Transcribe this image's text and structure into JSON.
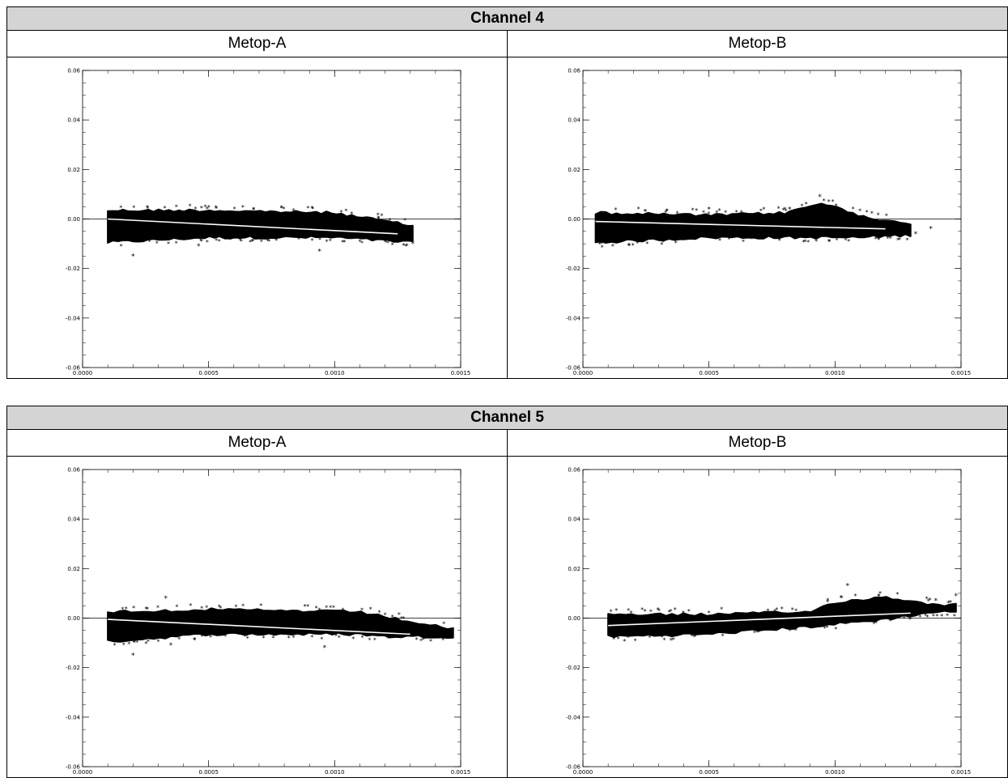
{
  "tables": [
    {
      "title": "Channel 4",
      "columns": [
        "Metop-A",
        "Metop-B"
      ]
    },
    {
      "title": "Channel 5",
      "columns": [
        "Metop-A",
        "Metop-B"
      ]
    }
  ],
  "axis": {
    "x_ticks": [
      "0.0000",
      "0.0005",
      "0.0010",
      "0.0015"
    ],
    "y_ticks": [
      "0.06",
      "0.04",
      "0.02",
      "0.00",
      "-0.02",
      "-0.04",
      "-0.06"
    ]
  },
  "chart_data": [
    {
      "type": "scatter",
      "panel": "Channel 4 / Metop-A",
      "xlim": [
        0,
        0.0015
      ],
      "ylim": [
        -0.06,
        0.06
      ],
      "grid": false,
      "zero_line": true,
      "x_range": [
        0.0001,
        0.00131
      ],
      "band": {
        "x": [
          0.0001,
          0.0005,
          0.001,
          0.0013
        ],
        "upper": [
          0.004,
          0.004,
          0.003,
          -0.002
        ],
        "lower": [
          -0.01,
          -0.008,
          -0.008,
          -0.01
        ]
      },
      "fit_line": {
        "x": [
          0.0001,
          0.00125
        ],
        "y": [
          0.0,
          -0.006
        ]
      },
      "outliers": [
        [
          0.0002,
          -0.015
        ],
        [
          0.00046,
          -0.011
        ],
        [
          0.00094,
          -0.013
        ],
        [
          0.0012,
          -0.009
        ],
        [
          0.00131,
          -0.01
        ]
      ]
    },
    {
      "type": "scatter",
      "panel": "Channel 4 / Metop-B",
      "xlim": [
        0,
        0.0015
      ],
      "ylim": [
        -0.06,
        0.06
      ],
      "grid": false,
      "zero_line": true,
      "x_range": [
        5e-05,
        0.0013
      ],
      "band": {
        "x": [
          5e-05,
          0.0005,
          0.0008,
          0.00095,
          0.0011,
          0.0013
        ],
        "upper": [
          0.003,
          0.002,
          0.003,
          0.007,
          0.002,
          -0.002
        ],
        "lower": [
          -0.01,
          -0.008,
          -0.008,
          -0.008,
          -0.008,
          -0.007
        ]
      },
      "fit_line": {
        "x": [
          5e-05,
          0.0012
        ],
        "y": [
          -0.001,
          -0.004
        ]
      },
      "outliers": [
        [
          0.00094,
          0.009
        ],
        [
          0.00082,
          0.004
        ],
        [
          0.0005,
          0.004
        ],
        [
          0.00132,
          -0.006
        ],
        [
          0.00138,
          -0.004
        ]
      ]
    },
    {
      "type": "scatter",
      "panel": "Channel 5 / Metop-A",
      "xlim": [
        0,
        0.0015
      ],
      "ylim": [
        -0.06,
        0.06
      ],
      "grid": false,
      "zero_line": true,
      "x_range": [
        0.0001,
        0.00147
      ],
      "band": {
        "x": [
          0.0001,
          0.0005,
          0.0011,
          0.0012,
          0.00147
        ],
        "upper": [
          0.003,
          0.004,
          0.003,
          0.001,
          -0.004
        ],
        "lower": [
          -0.01,
          -0.007,
          -0.007,
          -0.008,
          -0.008
        ]
      },
      "fit_line": {
        "x": [
          0.0001,
          0.0013
        ],
        "y": [
          -0.0005,
          -0.0065
        ]
      },
      "outliers": [
        [
          0.0002,
          -0.015
        ],
        [
          0.00033,
          0.008
        ],
        [
          0.00096,
          -0.012
        ],
        [
          0.00035,
          -0.011
        ]
      ]
    },
    {
      "type": "scatter",
      "panel": "Channel 5 / Metop-B",
      "xlim": [
        0,
        0.0015
      ],
      "ylim": [
        -0.06,
        0.06
      ],
      "grid": false,
      "zero_line": true,
      "x_range": [
        0.0001,
        0.00148
      ],
      "band": {
        "x": [
          0.0001,
          0.0005,
          0.0009,
          0.001,
          0.0012,
          0.0014
        ],
        "upper": [
          0.002,
          0.002,
          0.003,
          0.007,
          0.009,
          0.006
        ],
        "lower": [
          -0.008,
          -0.007,
          -0.004,
          -0.003,
          -0.001,
          0.002
        ]
      },
      "fit_line": {
        "x": [
          0.0001,
          0.0013
        ],
        "y": [
          -0.003,
          0.002
        ]
      },
      "outliers": [
        [
          0.00105,
          0.013
        ],
        [
          0.00148,
          0.009
        ],
        [
          0.00145,
          0.006
        ],
        [
          0.0014,
          0.007
        ],
        [
          0.00035,
          -0.009
        ]
      ]
    }
  ]
}
